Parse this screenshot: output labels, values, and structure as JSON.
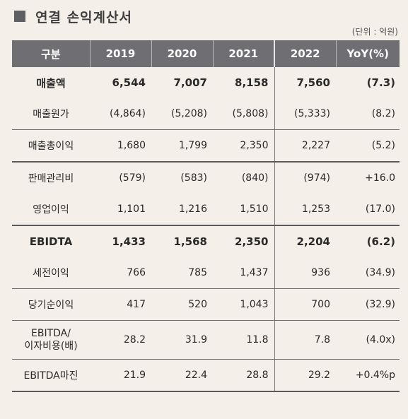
{
  "title": "연결 손익계산서",
  "unit": "(단위 : 억원)",
  "headers": [
    "구분",
    "2019",
    "2020",
    "2021",
    "2022",
    "YoY(%)"
  ],
  "rows": [
    {
      "label": "매출액",
      "v2019": "6,544",
      "v2020": "7,007",
      "v2021": "8,158",
      "v2022": "7,560",
      "yoy": "(7.3)"
    },
    {
      "label": "매출원가",
      "v2019": "(4,864)",
      "v2020": "(5,208)",
      "v2021": "(5,808)",
      "v2022": "(5,333)",
      "yoy": "(8.2)"
    },
    {
      "label": "매출총이익",
      "v2019": "1,680",
      "v2020": "1,799",
      "v2021": "2,350",
      "v2022": "2,227",
      "yoy": "(5.2)"
    },
    {
      "label": "판매관리비",
      "v2019": "(579)",
      "v2020": "(583)",
      "v2021": "(840)",
      "v2022": "(974)",
      "yoy": "+16.0"
    },
    {
      "label": "영업이익",
      "v2019": "1,101",
      "v2020": "1,216",
      "v2021": "1,510",
      "v2022": "1,253",
      "yoy": "(17.0)"
    },
    {
      "label": "EBIDTA",
      "v2019": "1,433",
      "v2020": "1,568",
      "v2021": "2,350",
      "v2022": "2,204",
      "yoy": "(6.2)"
    },
    {
      "label": "세전이익",
      "v2019": "766",
      "v2020": "785",
      "v2021": "1,437",
      "v2022": "936",
      "yoy": "(34.9)"
    },
    {
      "label": "당기순이익",
      "v2019": "417",
      "v2020": "520",
      "v2021": "1,043",
      "v2022": "700",
      "yoy": "(32.9)"
    },
    {
      "label_line1": "EBITDA/",
      "label_line2": "이자비용(배)",
      "v2019": "28.2",
      "v2020": "31.9",
      "v2021": "11.8",
      "v2022": "7.8",
      "yoy": "(4.0x)"
    },
    {
      "label": "EBITDA마진",
      "v2019": "21.9",
      "v2020": "22.4",
      "v2021": "28.8",
      "v2022": "29.2",
      "yoy": "+0.4%p"
    }
  ],
  "colors": {
    "header_bg": "#6f6f73",
    "page_bg": "#f4efe8",
    "title_square": "#5f5f63"
  }
}
